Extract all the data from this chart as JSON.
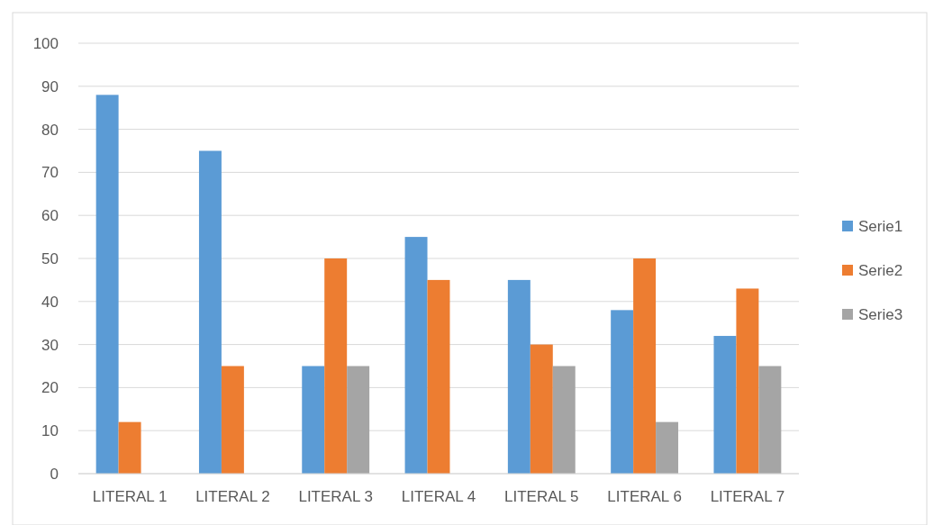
{
  "chart_data": {
    "type": "bar",
    "categories": [
      "LITERAL 1",
      "LITERAL 2",
      "LITERAL 3",
      "LITERAL 4",
      "LITERAL 5",
      "LITERAL 6",
      "LITERAL 7"
    ],
    "series": [
      {
        "name": "Serie1",
        "color": "#5b9bd5",
        "values": [
          88,
          75,
          25,
          55,
          45,
          38,
          32
        ]
      },
      {
        "name": "Serie2",
        "color": "#ed7d31",
        "values": [
          12,
          25,
          50,
          45,
          30,
          50,
          43
        ]
      },
      {
        "name": "Serie3",
        "color": "#a5a5a5",
        "values": [
          null,
          null,
          25,
          null,
          25,
          12,
          25
        ]
      }
    ],
    "ylim": [
      0,
      100
    ],
    "yticks": [
      0,
      10,
      20,
      30,
      40,
      50,
      60,
      70,
      80,
      90,
      100
    ],
    "grid": "y",
    "legend": "right"
  }
}
